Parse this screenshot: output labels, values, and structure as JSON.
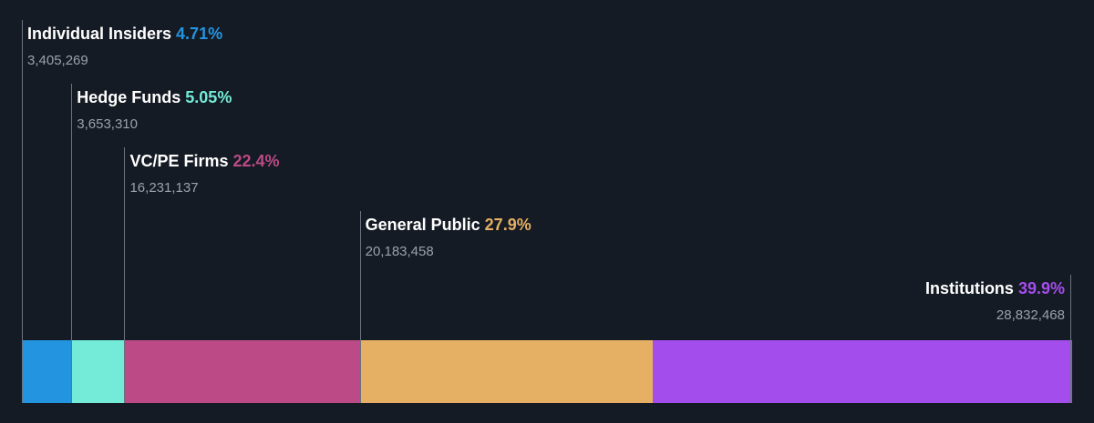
{
  "chart_data": {
    "type": "bar",
    "orientation": "horizontal-stacked",
    "title": "",
    "legend": "none",
    "grid": false,
    "series": [
      {
        "name": "Individual Insiders",
        "percent_label": "4.71%",
        "percent": 4.71,
        "count_label": "3,405,269",
        "count": 3405269,
        "color": "#2394df"
      },
      {
        "name": "Hedge Funds",
        "percent_label": "5.05%",
        "percent": 5.05,
        "count_label": "3,653,310",
        "count": 3653310,
        "color": "#73ebd8"
      },
      {
        "name": "VC/PE Firms",
        "percent_label": "22.4%",
        "percent": 22.4,
        "count_label": "16,231,137",
        "count": 16231137,
        "color": "#bb4a86"
      },
      {
        "name": "General Public",
        "percent_label": "27.9%",
        "percent": 27.9,
        "count_label": "20,183,458",
        "count": 20183458,
        "color": "#e5af64"
      },
      {
        "name": "Institutions",
        "percent_label": "39.9%",
        "percent": 39.9,
        "count_label": "28,832,468",
        "count": 28832468,
        "color": "#a44ded"
      }
    ]
  }
}
